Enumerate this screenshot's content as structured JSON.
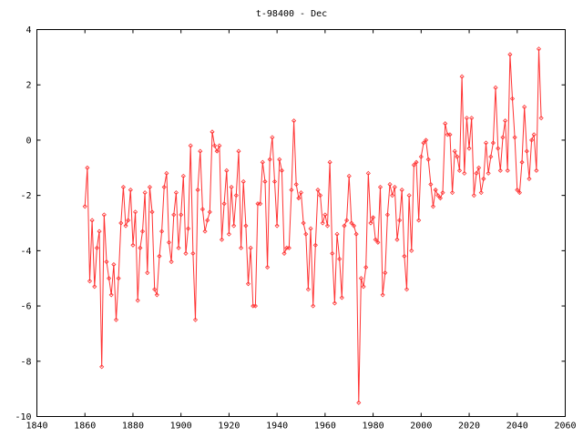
{
  "chart_data": {
    "type": "line",
    "title": "t-98400 - Dec",
    "xlabel": "",
    "ylabel": "",
    "xlim": [
      1840,
      2060
    ],
    "ylim": [
      -10,
      4
    ],
    "xticks": [
      1840,
      1860,
      1880,
      1900,
      1920,
      1940,
      1960,
      1980,
      2000,
      2020,
      2040,
      2060
    ],
    "yticks": [
      -10,
      -8,
      -6,
      -4,
      -2,
      0,
      2,
      4
    ],
    "grid": false,
    "marker": "diamond",
    "line_color": "#ff3333",
    "series": [
      {
        "name": "",
        "x": [
          1860,
          1861,
          1862,
          1863,
          1864,
          1865,
          1866,
          1867,
          1868,
          1869,
          1870,
          1871,
          1872,
          1873,
          1874,
          1875,
          1876,
          1877,
          1878,
          1879,
          1880,
          1881,
          1882,
          1883,
          1884,
          1885,
          1886,
          1887,
          1888,
          1889,
          1890,
          1891,
          1892,
          1893,
          1894,
          1895,
          1896,
          1897,
          1898,
          1899,
          1900,
          1901,
          1902,
          1903,
          1904,
          1905,
          1906,
          1907,
          1908,
          1909,
          1910,
          1911,
          1912,
          1913,
          1914,
          1915,
          1916,
          1917,
          1918,
          1919,
          1920,
          1921,
          1922,
          1923,
          1924,
          1925,
          1926,
          1927,
          1928,
          1929,
          1930,
          1931,
          1932,
          1933,
          1934,
          1935,
          1936,
          1937,
          1938,
          1939,
          1940,
          1941,
          1942,
          1943,
          1944,
          1945,
          1946,
          1947,
          1948,
          1949,
          1950,
          1951,
          1952,
          1953,
          1954,
          1955,
          1956,
          1957,
          1958,
          1959,
          1960,
          1961,
          1962,
          1963,
          1964,
          1965,
          1966,
          1967,
          1968,
          1969,
          1970,
          1971,
          1972,
          1973,
          1974,
          1975,
          1976,
          1977,
          1978,
          1979,
          1980,
          1981,
          1982,
          1983,
          1984,
          1985,
          1986,
          1987,
          1988,
          1989,
          1990,
          1991,
          1992,
          1993,
          1994,
          1995,
          1996,
          1997,
          1998,
          1999,
          2000,
          2001,
          2002,
          2003,
          2004,
          2005,
          2006,
          2007,
          2008,
          2009,
          2010,
          2011,
          2012,
          2013,
          2014,
          2015,
          2016,
          2017,
          2018,
          2019,
          2020,
          2021,
          2022,
          2023,
          2024,
          2025,
          2026,
          2027,
          2028,
          2029,
          2030,
          2031,
          2032,
          2033,
          2034,
          2035,
          2036,
          2037,
          2038,
          2039,
          2040,
          2041,
          2042,
          2043,
          2044,
          2045,
          2046,
          2047,
          2048,
          2049,
          2050
        ],
        "values": [
          -2.4,
          -1.0,
          -5.1,
          -2.9,
          -5.3,
          -3.9,
          -3.3,
          -8.2,
          -2.7,
          -4.4,
          -5.0,
          -5.6,
          -4.5,
          -6.5,
          -5.0,
          -3.0,
          -1.7,
          -3.1,
          -2.9,
          -1.8,
          -3.8,
          -2.6,
          -5.8,
          -3.9,
          -3.3,
          -1.9,
          -4.8,
          -1.7,
          -2.6,
          -5.4,
          -5.6,
          -4.2,
          -3.3,
          -1.7,
          -1.2,
          -3.7,
          -4.4,
          -2.7,
          -1.9,
          -3.9,
          -2.7,
          -1.3,
          -4.1,
          -3.2,
          -0.2,
          -4.1,
          -6.5,
          -1.8,
          -0.4,
          -2.5,
          -3.3,
          -2.9,
          -2.6,
          0.3,
          -0.2,
          -0.4,
          -0.2,
          -3.6,
          -2.3,
          -1.1,
          -3.4,
          -1.7,
          -3.1,
          -2.0,
          -0.4,
          -3.9,
          -1.5,
          -3.1,
          -5.2,
          -3.9,
          -6.0,
          -6.0,
          -2.3,
          -2.3,
          -0.8,
          -1.5,
          -4.6,
          -0.7,
          0.1,
          -1.5,
          -3.1,
          -0.7,
          -1.1,
          -4.1,
          -3.9,
          -3.9,
          -1.8,
          0.7,
          -1.6,
          -2.1,
          -1.9,
          -3.0,
          -3.4,
          -5.4,
          -3.2,
          -6.0,
          -3.8,
          -1.8,
          -2.0,
          -3.0,
          -2.7,
          -3.1,
          -0.8,
          -4.1,
          -5.9,
          -3.4,
          -4.3,
          -5.7,
          -3.1,
          -2.9,
          -1.3,
          -3.0,
          -3.1,
          -3.4,
          -9.5,
          -5.0,
          -5.3,
          -4.6,
          -1.2,
          -3.0,
          -2.8,
          -3.6,
          -3.7,
          -1.7,
          -5.6,
          -4.8,
          -2.7,
          -1.6,
          -2.0,
          -1.7,
          -3.6,
          -2.9,
          -1.8,
          -4.2,
          -5.4,
          -2.0,
          -4.0,
          -0.9,
          -0.8,
          -2.9,
          -0.6,
          -0.1,
          0.0,
          -0.7,
          -1.6,
          -2.4,
          -1.8,
          -2.0,
          -2.1,
          -1.9,
          0.6,
          0.2,
          0.2,
          -1.9,
          -0.4,
          -0.6,
          -1.1,
          2.3,
          -1.2,
          0.8,
          -0.3,
          0.8,
          -2.0,
          -1.2,
          -1.0,
          -1.9,
          -1.4,
          -0.1,
          -1.2,
          -0.6,
          -0.1,
          1.9,
          -0.3,
          -1.1,
          0.1,
          0.7,
          -1.1,
          3.1,
          1.5,
          0.1,
          -1.8,
          -1.9,
          -0.8,
          1.2,
          -0.4,
          -1.4,
          0.0,
          0.2,
          -1.1,
          3.3,
          0.8
        ]
      }
    ]
  }
}
